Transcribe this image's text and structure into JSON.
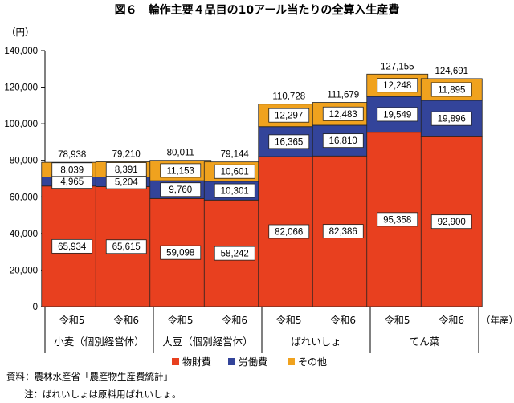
{
  "colors": {
    "material": "#e8401f",
    "labor": "#33449a",
    "other": "#f0a21e",
    "grid": "#7f7f7f"
  },
  "chart_data": {
    "type": "bar",
    "stacked": true,
    "title": "図６　輪作主要４品目の10アール当たりの全算入生産費",
    "ylabel": "（円）",
    "xlabel": "（年産）",
    "ylim": [
      0,
      140000
    ],
    "yticks": [
      "0",
      "20,000",
      "40,000",
      "60,000",
      "80,000",
      "100,000",
      "120,000",
      "140,000"
    ],
    "grid": false,
    "legend_position": "bottom",
    "groups": [
      "小麦（個別経営体）",
      "大豆（個別経営体）",
      "ばれいしょ",
      "てん菜"
    ],
    "categories": [
      "令和5",
      "令和6",
      "令和5",
      "令和6",
      "令和5",
      "令和6",
      "令和5",
      "令和6"
    ],
    "series": [
      {
        "name": "物財費",
        "values": [
          65934,
          65615,
          59098,
          58242,
          82066,
          82386,
          95358,
          92900
        ],
        "labels": [
          "65,934",
          "65,615",
          "59,098",
          "58,242",
          "82,066",
          "82,386",
          "95,358",
          "92,900"
        ]
      },
      {
        "name": "労働費",
        "values": [
          4965,
          5204,
          9760,
          10301,
          16365,
          16810,
          19549,
          19896
        ],
        "labels": [
          "4,965",
          "5,204",
          "9,760",
          "10,301",
          "16,365",
          "16,810",
          "19,549",
          "19,896"
        ]
      },
      {
        "name": "その他",
        "values": [
          8039,
          8391,
          11153,
          10601,
          12297,
          12483,
          12248,
          11895
        ],
        "labels": [
          "8,039",
          "8,391",
          "11,153",
          "10,601",
          "12,297",
          "12,483",
          "12,248",
          "11,895"
        ]
      }
    ],
    "totals": [
      "78,938",
      "79,210",
      "80,011",
      "79,144",
      "110,728",
      "111,679",
      "127,155",
      "124,691"
    ]
  },
  "notes": {
    "source": "資料：農林水産省「農産物生産費統計」",
    "note": "注：ばれいしょは原料用ばれいしょ。"
  }
}
